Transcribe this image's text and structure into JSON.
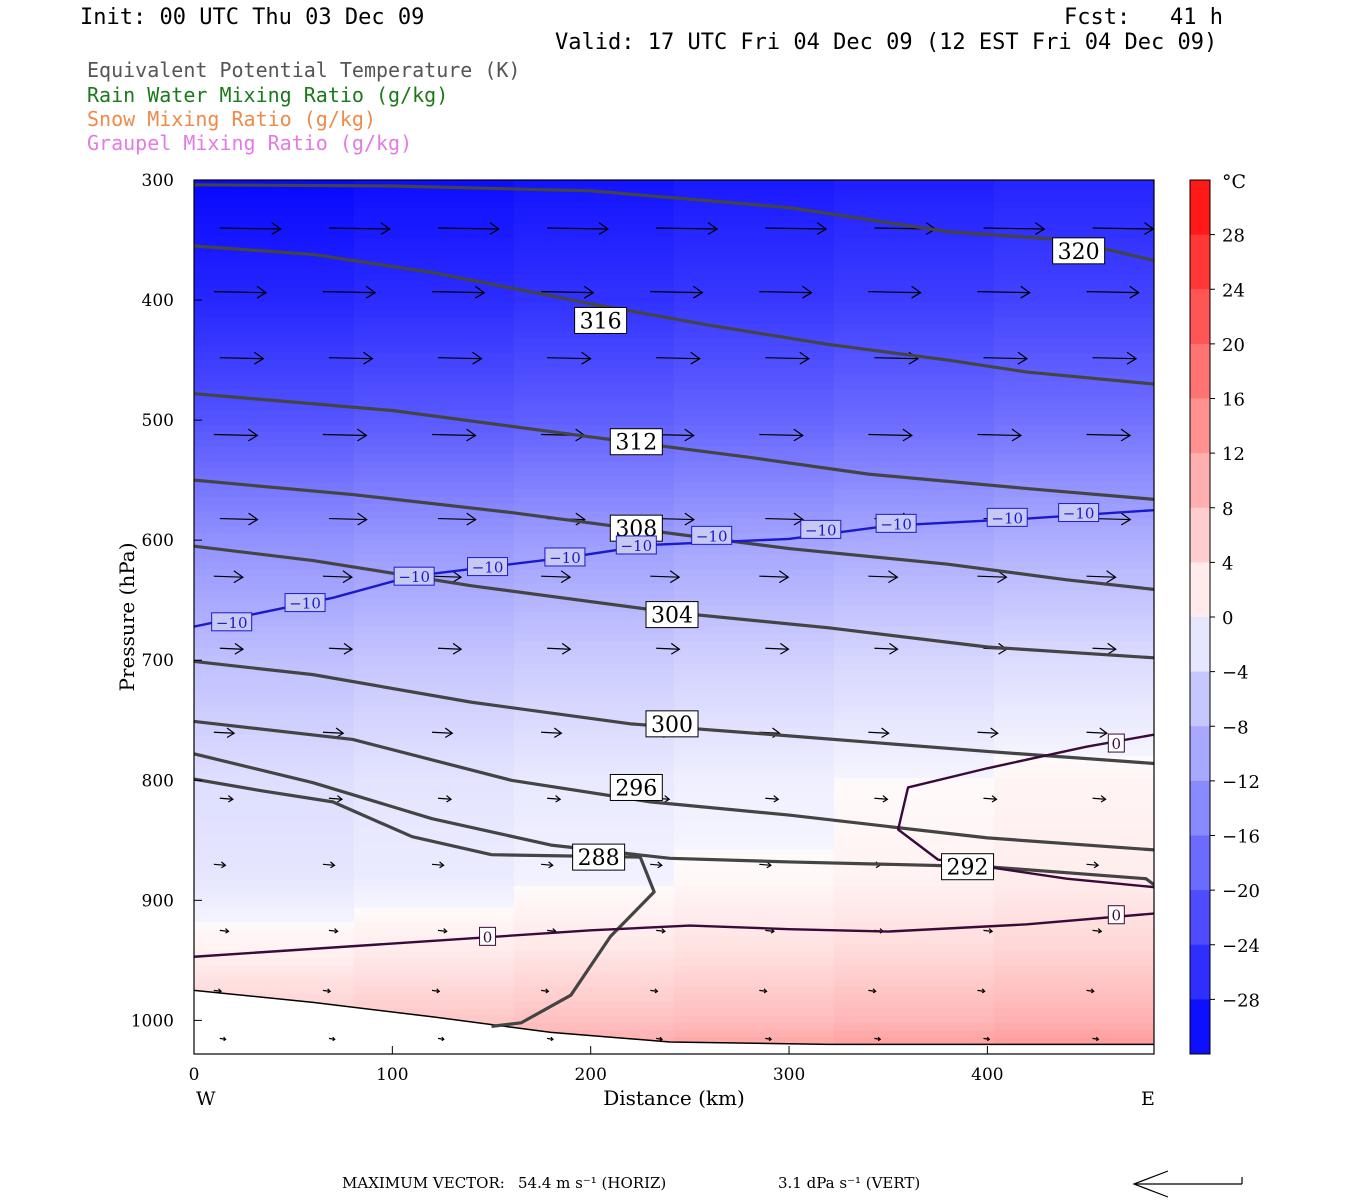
{
  "header": {
    "init": "Init: 00 UTC Thu 03 Dec 09",
    "fcst": "Fcst:   41 h",
    "valid": "Valid: 17 UTC Fri 04 Dec 09 (12 EST Fri 04 Dec 09)"
  },
  "legend": [
    {
      "label": "Equivalent Potential Temperature (K)",
      "color": "#555555"
    },
    {
      "label": "Rain Water Mixing Ratio (g/kg)",
      "color": "#1a7a1a"
    },
    {
      "label": "Snow Mixing Ratio (g/kg)",
      "color": "#ef8a4a"
    },
    {
      "label": "Graupel Mixing Ratio (g/kg)",
      "color": "#e57ae5"
    }
  ],
  "chart_data": {
    "type": "cross-section",
    "xlabel": "Distance (km)",
    "ylabel": "Pressure (hPa)",
    "xlim": [
      0,
      484
    ],
    "ylim": [
      300,
      1028
    ],
    "y_scale": "linear, inverted",
    "x_ticks": [
      0,
      100,
      200,
      300,
      400
    ],
    "y_ticks": [
      300,
      400,
      500,
      600,
      700,
      800,
      900,
      1000
    ],
    "x_end_labels": {
      "left": "W",
      "right": "E"
    },
    "colorbar": {
      "unit": "°C",
      "ticks": [
        28,
        24,
        20,
        16,
        12,
        8,
        4,
        0,
        -4,
        -8,
        -12,
        -16,
        -20,
        -24,
        -28
      ],
      "range": [
        -32,
        32
      ]
    },
    "theta_e_contours": [
      {
        "label": "320",
        "points": [
          [
            0,
            304
          ],
          [
            100,
            305
          ],
          [
            200,
            309
          ],
          [
            300,
            323
          ],
          [
            380,
            343
          ],
          [
            440,
            350
          ],
          [
            484,
            367
          ]
        ],
        "label_at": [
          446,
          359
        ]
      },
      {
        "label": "316",
        "points": [
          [
            0,
            355
          ],
          [
            60,
            362
          ],
          [
            120,
            377
          ],
          [
            200,
            403
          ],
          [
            260,
            421
          ],
          [
            320,
            437
          ],
          [
            380,
            450
          ],
          [
            420,
            460
          ],
          [
            484,
            470
          ]
        ],
        "label_at": [
          205,
          417
        ]
      },
      {
        "label": "312",
        "points": [
          [
            0,
            478
          ],
          [
            100,
            492
          ],
          [
            200,
            514
          ],
          [
            280,
            531
          ],
          [
            340,
            545
          ],
          [
            420,
            557
          ],
          [
            484,
            566
          ]
        ],
        "label_at": [
          223,
          518
        ]
      },
      {
        "label": "308",
        "points": [
          [
            0,
            550
          ],
          [
            80,
            562
          ],
          [
            160,
            577
          ],
          [
            220,
            590
          ],
          [
            300,
            607
          ],
          [
            380,
            620
          ],
          [
            440,
            633
          ],
          [
            484,
            641
          ]
        ],
        "label_at": [
          223,
          590
        ]
      },
      {
        "label": "304",
        "points": [
          [
            0,
            605
          ],
          [
            60,
            617
          ],
          [
            140,
            638
          ],
          [
            240,
            660
          ],
          [
            320,
            673
          ],
          [
            400,
            689
          ],
          [
            484,
            698
          ]
        ],
        "label_at": [
          241,
          662
        ]
      },
      {
        "label": "300",
        "points": [
          [
            0,
            701
          ],
          [
            60,
            712
          ],
          [
            140,
            735
          ],
          [
            220,
            753
          ],
          [
            300,
            763
          ],
          [
            400,
            776
          ],
          [
            484,
            786
          ]
        ],
        "label_at": [
          241,
          753
        ]
      },
      {
        "label": "296",
        "points": [
          [
            0,
            751
          ],
          [
            80,
            766
          ],
          [
            160,
            800
          ],
          [
            230,
            818
          ],
          [
            300,
            829
          ],
          [
            400,
            848
          ],
          [
            484,
            858
          ]
        ],
        "label_at": [
          223,
          806
        ]
      },
      {
        "label": "292",
        "points": [
          [
            0,
            778
          ],
          [
            60,
            802
          ],
          [
            120,
            832
          ],
          [
            180,
            854
          ],
          [
            240,
            865
          ],
          [
            300,
            868
          ],
          [
            400,
            872
          ],
          [
            480,
            882
          ],
          [
            484,
            887
          ]
        ],
        "label_at": [
          390,
          872
        ]
      },
      {
        "label": "288",
        "points": [
          [
            0,
            799
          ],
          [
            35,
            809
          ],
          [
            70,
            818
          ],
          [
            110,
            847
          ],
          [
            150,
            862
          ],
          [
            225,
            864
          ],
          [
            232,
            893
          ],
          [
            210,
            930
          ],
          [
            190,
            979
          ],
          [
            165,
            1002
          ],
          [
            150,
            1005
          ]
        ],
        "label_at": [
          204,
          864
        ]
      }
    ],
    "isotherms": [
      {
        "label": "-10",
        "points": [
          [
            0,
            672
          ],
          [
            70,
            648
          ],
          [
            110,
            630
          ],
          [
            190,
            614
          ],
          [
            230,
            604
          ],
          [
            300,
            599
          ],
          [
            350,
            588
          ],
          [
            420,
            582
          ],
          [
            484,
            575
          ]
        ],
        "labels_at": [
          [
            19,
            668
          ],
          [
            56,
            652
          ],
          [
            111,
            630
          ],
          [
            148,
            622
          ],
          [
            187,
            614
          ],
          [
            223,
            604
          ],
          [
            261,
            596
          ],
          [
            316,
            591
          ],
          [
            354,
            586
          ],
          [
            410,
            581
          ],
          [
            446,
            577
          ]
        ]
      },
      {
        "label": "0",
        "points": [
          [
            0,
            947
          ],
          [
            100,
            936
          ],
          [
            200,
            925
          ],
          [
            250,
            921
          ],
          [
            300,
            924
          ],
          [
            350,
            926
          ],
          [
            420,
            920
          ],
          [
            484,
            911
          ]
        ],
        "labels_at": [
          [
            148,
            930
          ],
          [
            465,
            912
          ]
        ]
      },
      {
        "label": "0",
        "points": [
          [
            484,
            762
          ],
          [
            450,
            772
          ],
          [
            400,
            790
          ],
          [
            360,
            806
          ],
          [
            355,
            841
          ],
          [
            375,
            866
          ],
          [
            440,
            882
          ],
          [
            484,
            889
          ]
        ],
        "labels_at": [
          [
            465,
            769
          ]
        ]
      }
    ],
    "temperature_field": [
      {
        "p": 300,
        "t": -31
      },
      {
        "p": 400,
        "t": -27
      },
      {
        "p": 500,
        "t": -21
      },
      {
        "p": 600,
        "t": -13
      },
      {
        "p": 700,
        "t": -7
      },
      {
        "p": 800,
        "t": -3
      },
      {
        "p": 880,
        "t": -2
      },
      {
        "p": 940,
        "t": 1
      },
      {
        "p": 1000,
        "t": 6
      },
      {
        "p": 1020,
        "t": 9
      }
    ],
    "wind_vectors": [
      {
        "p": 340,
        "u": [
          42,
          42,
          42,
          42,
          42,
          42,
          42,
          42,
          42
        ]
      },
      {
        "p": 393,
        "u": [
          36,
          36,
          36,
          36,
          36,
          36,
          36,
          36,
          36
        ]
      },
      {
        "p": 448,
        "u": [
          30,
          30,
          30,
          30,
          30,
          30,
          30,
          30,
          30
        ]
      },
      {
        "p": 512,
        "u": [
          30,
          30,
          30,
          30,
          30,
          30,
          30,
          30,
          30
        ]
      },
      {
        "p": 582,
        "u": [
          26,
          26,
          26,
          26,
          26,
          26,
          26,
          26,
          26
        ]
      },
      {
        "p": 630,
        "u": [
          20,
          20,
          20,
          20,
          20,
          20,
          20,
          20,
          20
        ]
      },
      {
        "p": 690,
        "u": [
          16,
          16,
          16,
          16,
          16,
          16,
          16,
          16,
          16
        ]
      },
      {
        "p": 760,
        "u": [
          14,
          14,
          14,
          14,
          14,
          14,
          14,
          14,
          14
        ]
      },
      {
        "p": 815,
        "u": [
          9,
          9,
          9,
          9,
          9,
          9,
          9,
          9,
          9
        ]
      },
      {
        "p": 870,
        "u": [
          8,
          8,
          8,
          8,
          8,
          8,
          8,
          8,
          8
        ]
      },
      {
        "p": 925,
        "u": [
          6,
          6,
          6,
          6,
          6,
          6,
          6,
          6,
          6
        ]
      },
      {
        "p": 975,
        "u": [
          5,
          5,
          5,
          5,
          5,
          5,
          5,
          5,
          5
        ]
      },
      {
        "p": 1015,
        "u": [
          4,
          4,
          4,
          4,
          4,
          4,
          4,
          4,
          4
        ]
      }
    ],
    "terrain": [
      [
        0,
        975
      ],
      [
        60,
        985
      ],
      [
        120,
        997
      ],
      [
        180,
        1010
      ],
      [
        240,
        1018
      ],
      [
        320,
        1020
      ],
      [
        420,
        1020
      ],
      [
        484,
        1020
      ]
    ]
  },
  "footer": {
    "max_vector_label": "MAXIMUM VECTOR:",
    "horiz": "54.4 m s⁻¹ (HORIZ)",
    "vert": "3.1 dPa s⁻¹ (VERT)"
  }
}
